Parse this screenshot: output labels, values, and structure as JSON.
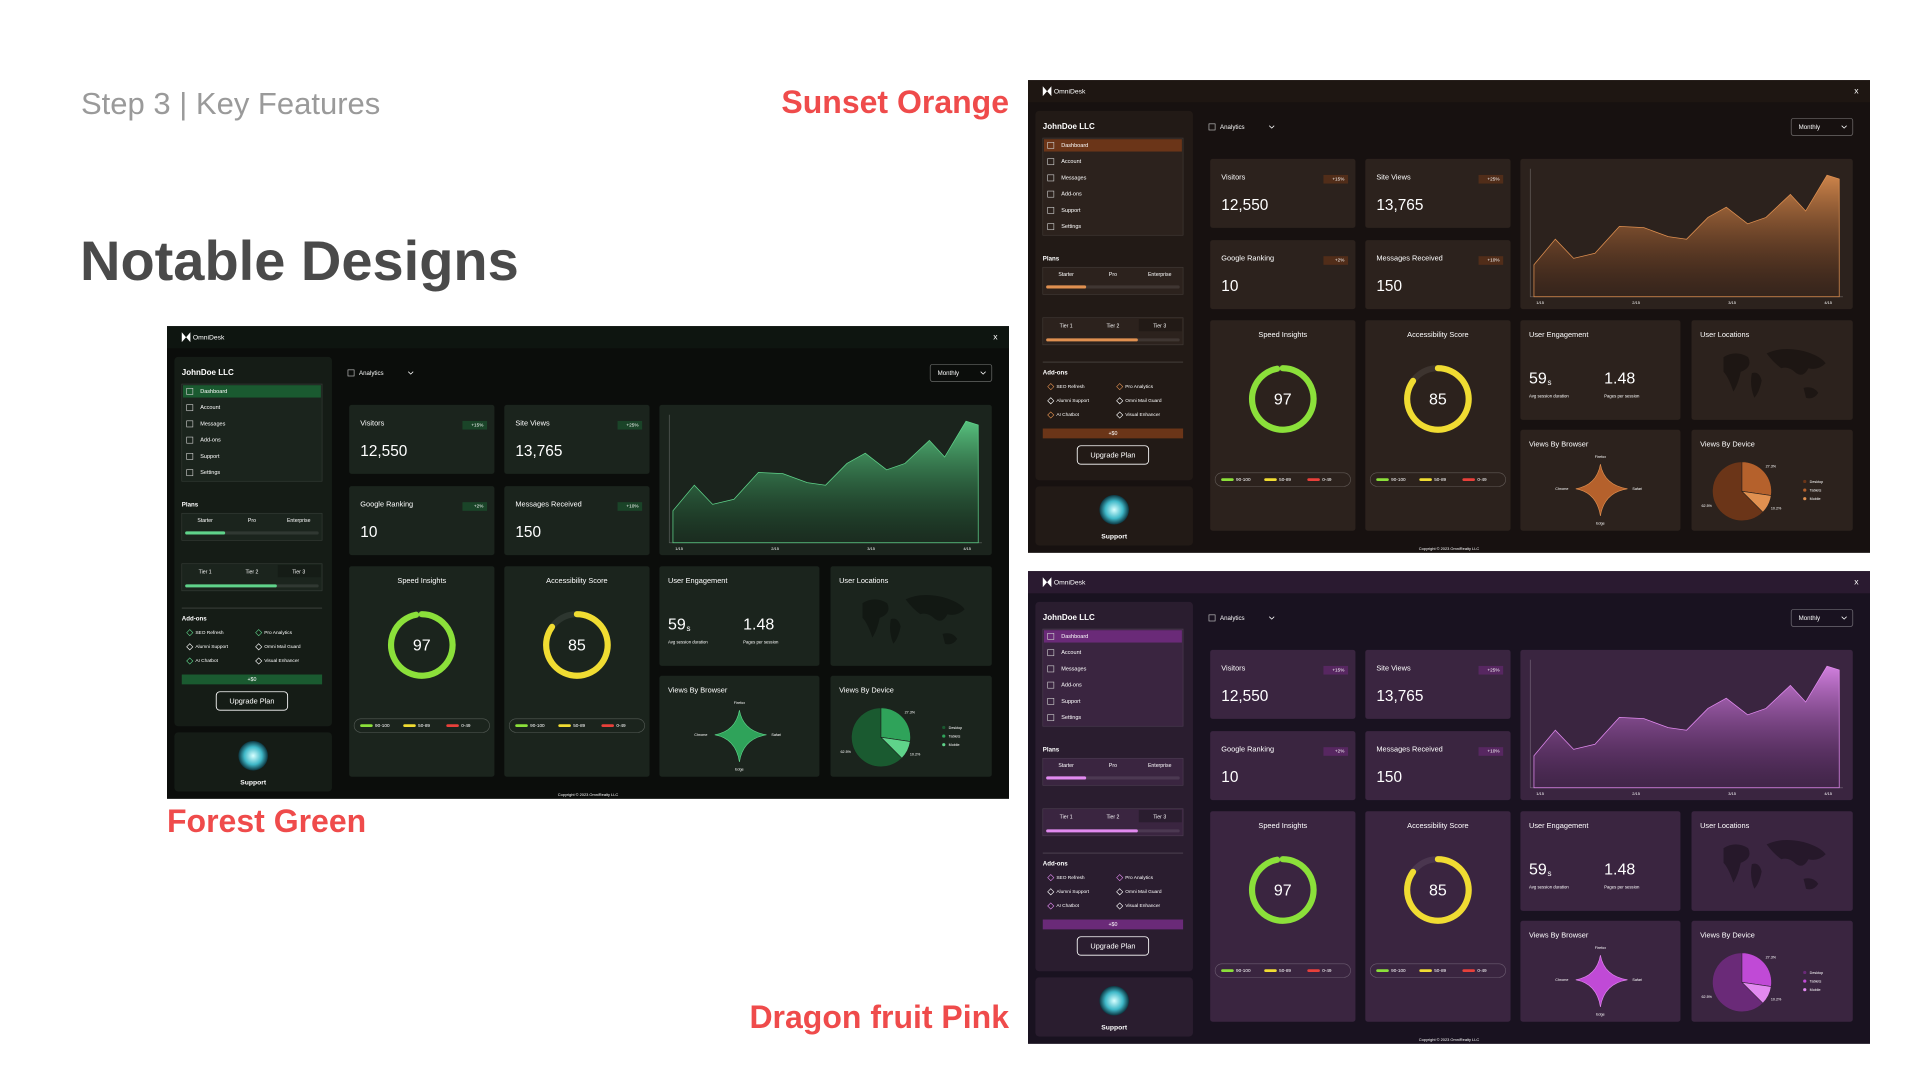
{
  "header": {
    "step": "Step 3 | Key Features",
    "title": "Notable Designs"
  },
  "themes": [
    {
      "name": "Forest Green",
      "bg": "#0b0d0b",
      "bar": "#0e1510",
      "panel": "#151c16",
      "card": "#1b241d",
      "accent": "#2fa35a",
      "accent_light": "#5fd38a",
      "accent_dark": "#1a5a30"
    },
    {
      "name": "Sunset Orange",
      "bg": "#171110",
      "bar": "#1e1612",
      "panel": "#221a16",
      "card": "#2c221d",
      "accent": "#b5612c",
      "accent_light": "#e09050",
      "accent_dark": "#6b3518"
    },
    {
      "name": "Dragon fruit Pink",
      "bg": "#191220",
      "bar": "#2a1a30",
      "panel": "#2a1d2f",
      "card": "#3a2540",
      "accent": "#c04ad6",
      "accent_light": "#e28af0",
      "accent_dark": "#6a2a78"
    }
  ],
  "dashboard": {
    "brand": "OmniDesk",
    "close": "x",
    "company": "JohnDoe LLC",
    "menu": [
      "Dashboard",
      "Account",
      "Messages",
      "Add-ons",
      "Support",
      "Settings"
    ],
    "plans_label": "Plans",
    "plans": [
      "Starter",
      "Pro",
      "Enterprise"
    ],
    "tiers": [
      "Tier 1",
      "Tier 2",
      "Tier 3"
    ],
    "addons_label": "Add-ons",
    "addons": [
      [
        "SEO Refresh",
        "Pro Analytics"
      ],
      [
        "Alumni Support",
        "Omni Mail Guard"
      ],
      [
        "AI Chatbot",
        "Visual Enhancer"
      ]
    ],
    "price": "+$0",
    "upgrade": "Upgrade Plan",
    "support": "Support",
    "view": "Analytics",
    "period": "Monthly",
    "stats": [
      {
        "label": "Visitors",
        "value": "12,550",
        "change": "+15%"
      },
      {
        "label": "Site Views",
        "value": "13,765",
        "change": "+25%"
      },
      {
        "label": "Google Ranking",
        "value": "10",
        "change": "+2%"
      },
      {
        "label": "Messages Received",
        "value": "150",
        "change": "+10%"
      }
    ],
    "chart_dates": [
      "1/15",
      "2/15",
      "3/15",
      "4/15"
    ],
    "gauges": [
      {
        "label": "Speed Insights",
        "score": 97,
        "color": "#8be03a"
      },
      {
        "label": "Accessibility Score",
        "score": 85,
        "color": "#f0dc32"
      }
    ],
    "legend": [
      {
        "label": "90-100",
        "color": "#8be03a"
      },
      {
        "label": "50-89",
        "color": "#f0dc32"
      },
      {
        "label": "0-49",
        "color": "#e8403a"
      }
    ],
    "engagement": {
      "title": "User Engagement",
      "duration": "59",
      "unit": "s",
      "duration_label": "Avg session duration",
      "pages": "1.48",
      "pages_label": "Pages per session"
    },
    "locations": "User Locations",
    "browser": {
      "title": "Views By Browser",
      "labels": [
        "Firefox",
        "Safari",
        "Edge",
        "Chrome"
      ]
    },
    "device": {
      "title": "Views By Device",
      "legend": [
        "Desktop",
        "Tablets",
        "Mobile"
      ],
      "values": [
        62.5,
        27.3,
        10.2
      ],
      "value_labels": [
        "62.5%",
        "27.3%",
        "10.2%"
      ]
    },
    "copyright": "Copyright © 2023 OmniRealty LLC"
  }
}
